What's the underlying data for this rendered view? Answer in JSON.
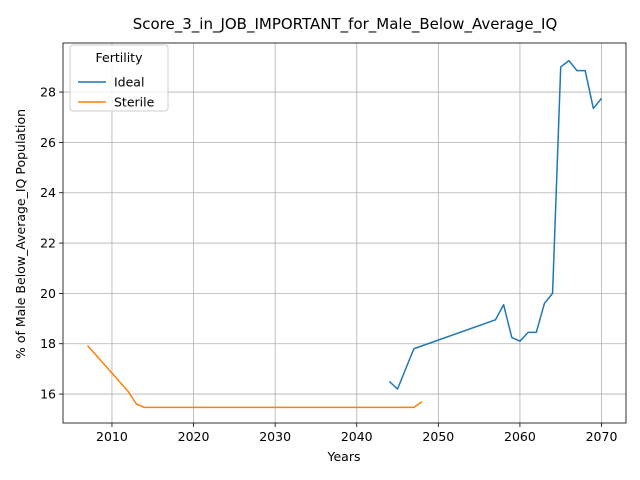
{
  "chart_data": {
    "type": "line",
    "title": "Score_3_in_JOB_IMPORTANT_for_Male_Below_Average_IQ",
    "xlabel": "Years",
    "ylabel": "% of Male Below_Average_IQ Population",
    "xlim": [
      2004,
      2073
    ],
    "ylim": [
      14.85,
      29.95
    ],
    "xticks": [
      2010,
      2020,
      2030,
      2040,
      2050,
      2060,
      2070
    ],
    "yticks": [
      16,
      18,
      20,
      22,
      24,
      26,
      28
    ],
    "grid": true,
    "legend": {
      "title": "Fertility",
      "position": "top-left"
    },
    "series": [
      {
        "name": "Ideal",
        "color": "#1f77b4",
        "x": [
          2044,
          2045,
          2046,
          2047,
          2057,
          2058,
          2059,
          2060,
          2061,
          2062,
          2063,
          2064,
          2065,
          2066,
          2067,
          2068,
          2069,
          2070
        ],
        "y": [
          16.5,
          16.2,
          17.0,
          17.8,
          18.95,
          19.55,
          18.25,
          18.1,
          18.45,
          18.45,
          19.6,
          20.0,
          29.0,
          29.25,
          28.85,
          28.85,
          27.35,
          27.75
        ]
      },
      {
        "name": "Sterile",
        "color": "#ff7f0e",
        "x": [
          2007,
          2012,
          2013,
          2014,
          2020,
          2030,
          2040,
          2047,
          2048
        ],
        "y": [
          17.93,
          16.1,
          15.6,
          15.47,
          15.47,
          15.47,
          15.47,
          15.47,
          15.7
        ]
      }
    ]
  }
}
